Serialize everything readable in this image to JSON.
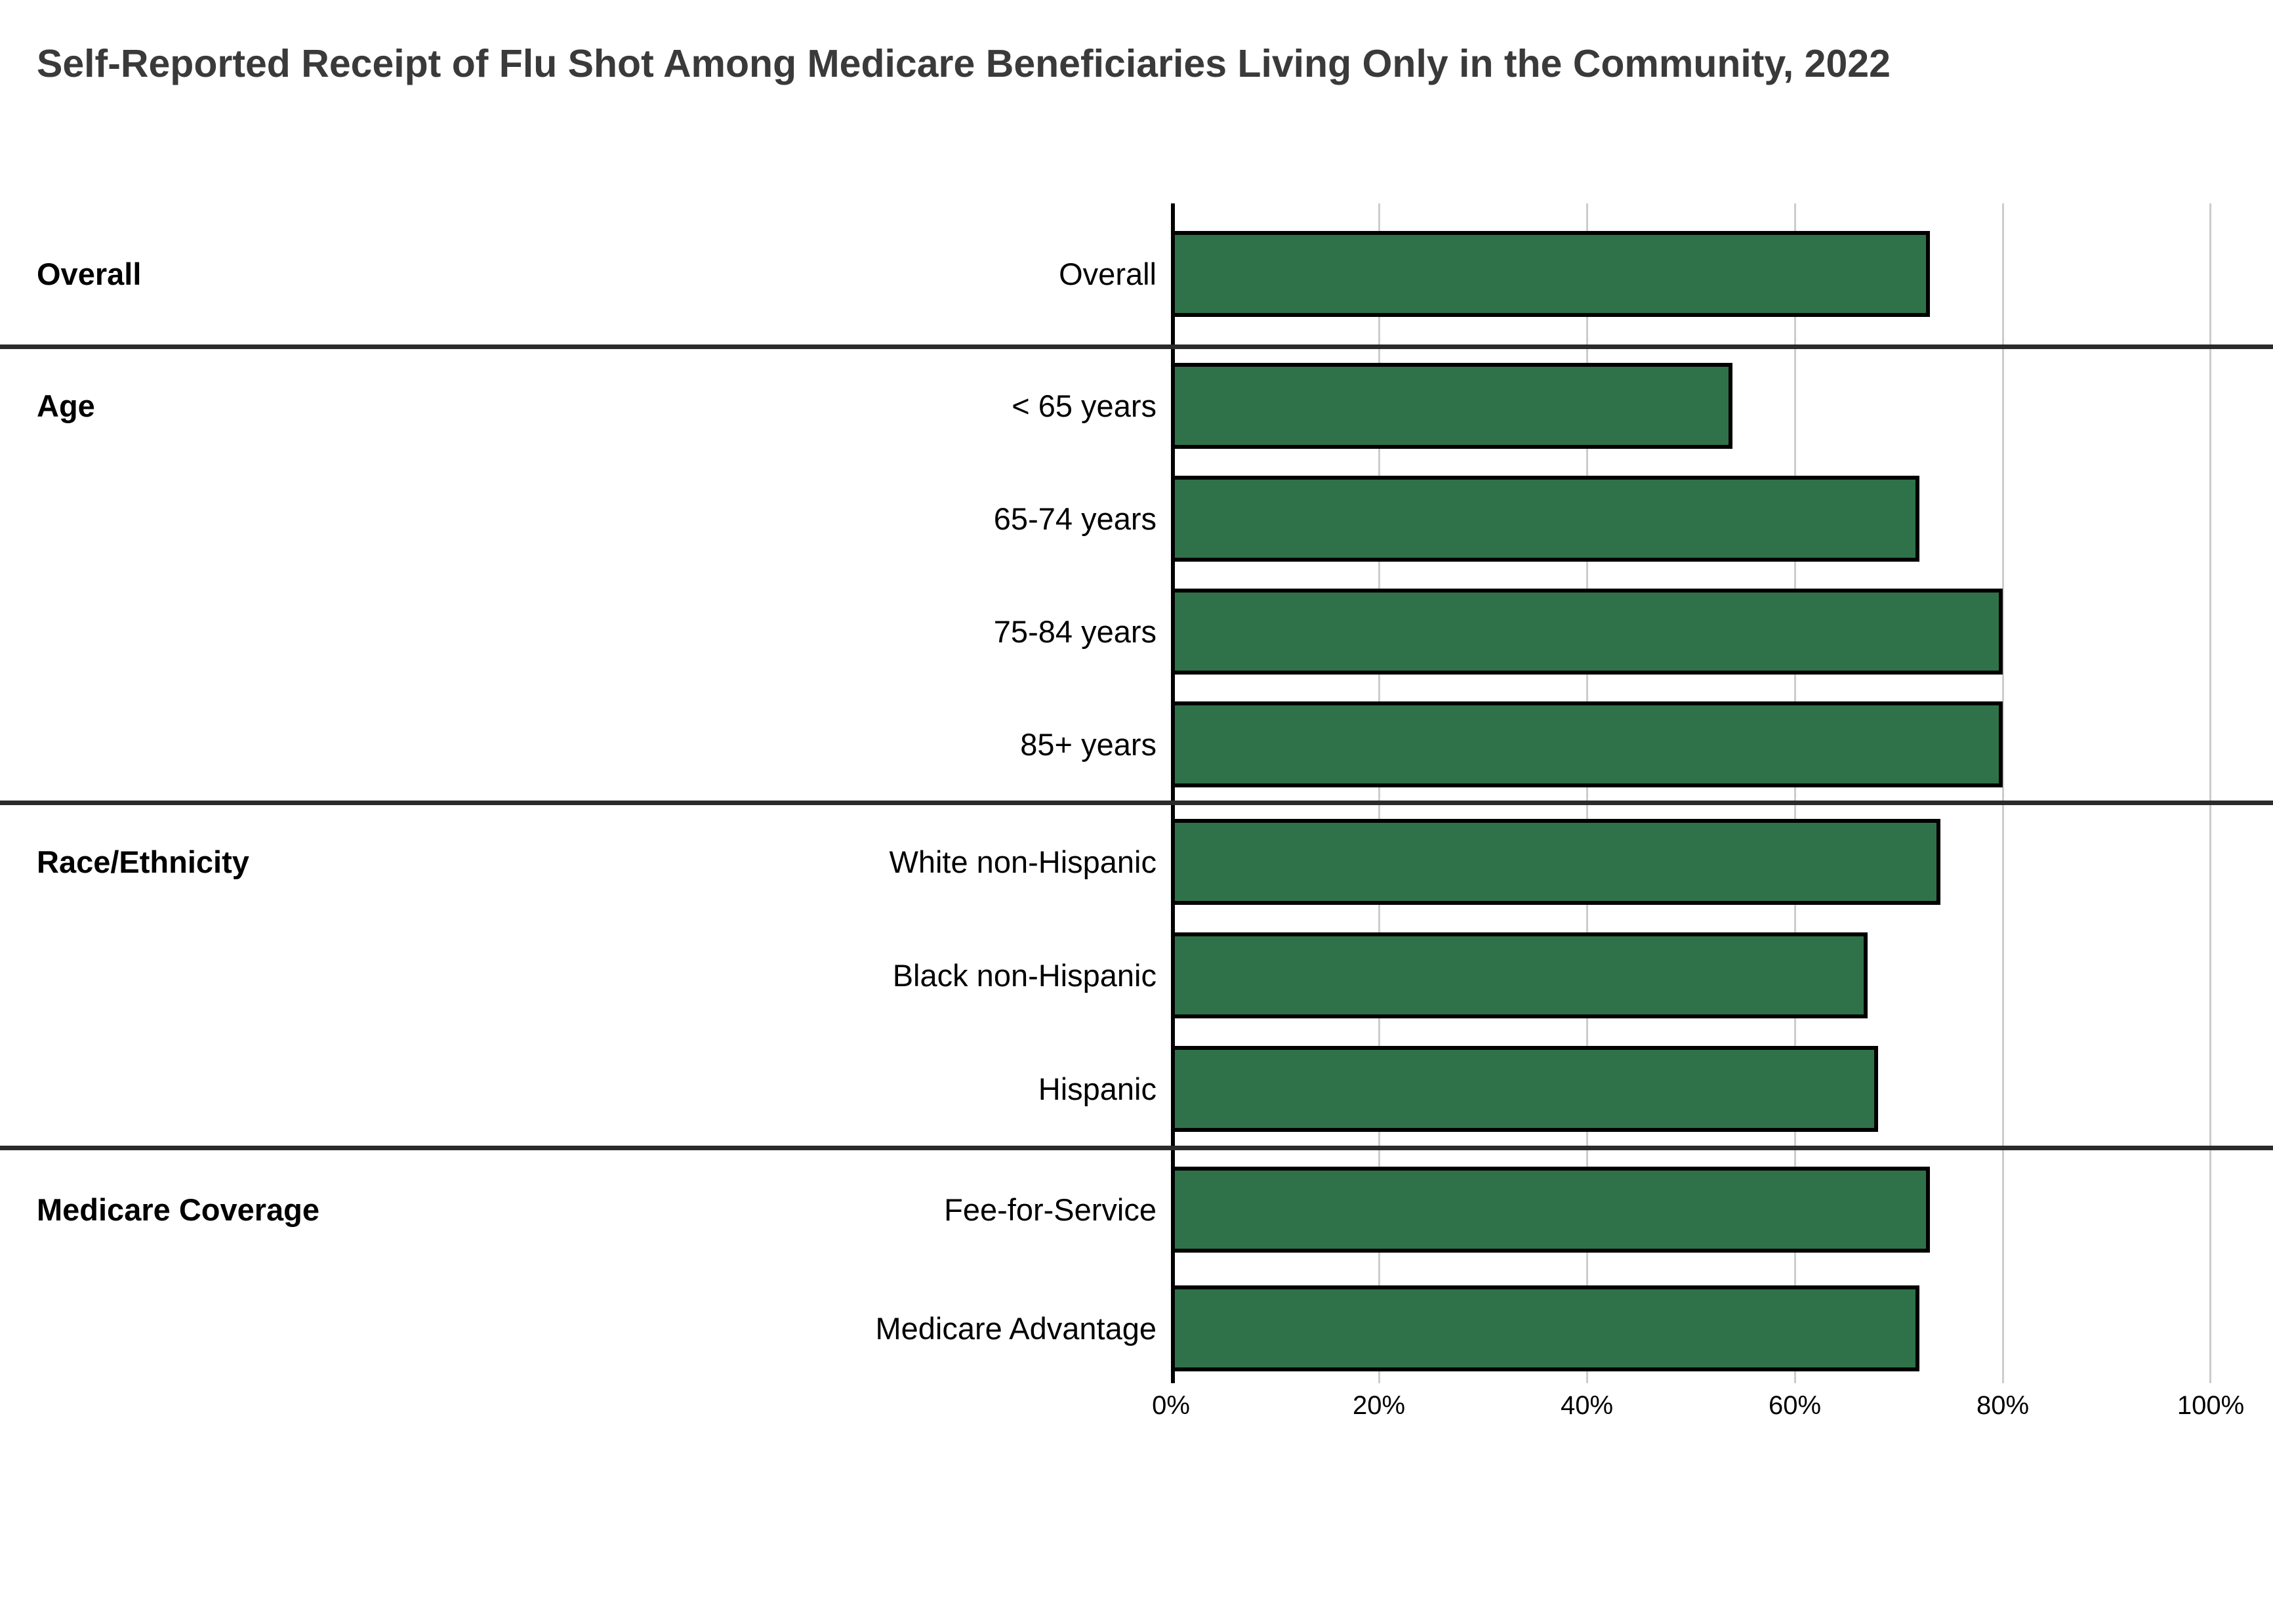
{
  "title": "Self-Reported Receipt of Flu Shot Among Medicare Beneficiaries Living Only in the Community, 2022",
  "chart_data": {
    "type": "bar",
    "orientation": "horizontal",
    "title": "Self-Reported Receipt of Flu Shot Among Medicare Beneficiaries Living Only in the Community, 2022",
    "xlabel": "",
    "ylabel": "",
    "xlim": [
      0,
      100
    ],
    "x_ticks": [
      "0%",
      "20%",
      "40%",
      "60%",
      "80%",
      "100%"
    ],
    "x_tick_values": [
      0,
      20,
      40,
      60,
      80,
      100
    ],
    "grid": true,
    "bar_color": "#2f7249",
    "bar_border_color": "#000000",
    "gridline_color": "#cccccc",
    "separator_color": "#2b2b2b",
    "groups": [
      {
        "label": "Overall",
        "rows": [
          {
            "label": "Overall",
            "value": 73
          }
        ]
      },
      {
        "label": "Age",
        "rows": [
          {
            "label": "< 65 years",
            "value": 54
          },
          {
            "label": "65-74 years",
            "value": 72
          },
          {
            "label": "75-84 years",
            "value": 80
          },
          {
            "label": "85+ years",
            "value": 80
          }
        ]
      },
      {
        "label": "Race/Ethnicity",
        "rows": [
          {
            "label": "White non-Hispanic",
            "value": 74
          },
          {
            "label": "Black non-Hispanic",
            "value": 67
          },
          {
            "label": "Hispanic",
            "value": 68
          }
        ]
      },
      {
        "label": "Medicare Coverage",
        "rows": [
          {
            "label": "Fee-for-Service",
            "value": 73
          },
          {
            "label": "Medicare Advantage",
            "value": 72
          }
        ]
      }
    ]
  }
}
